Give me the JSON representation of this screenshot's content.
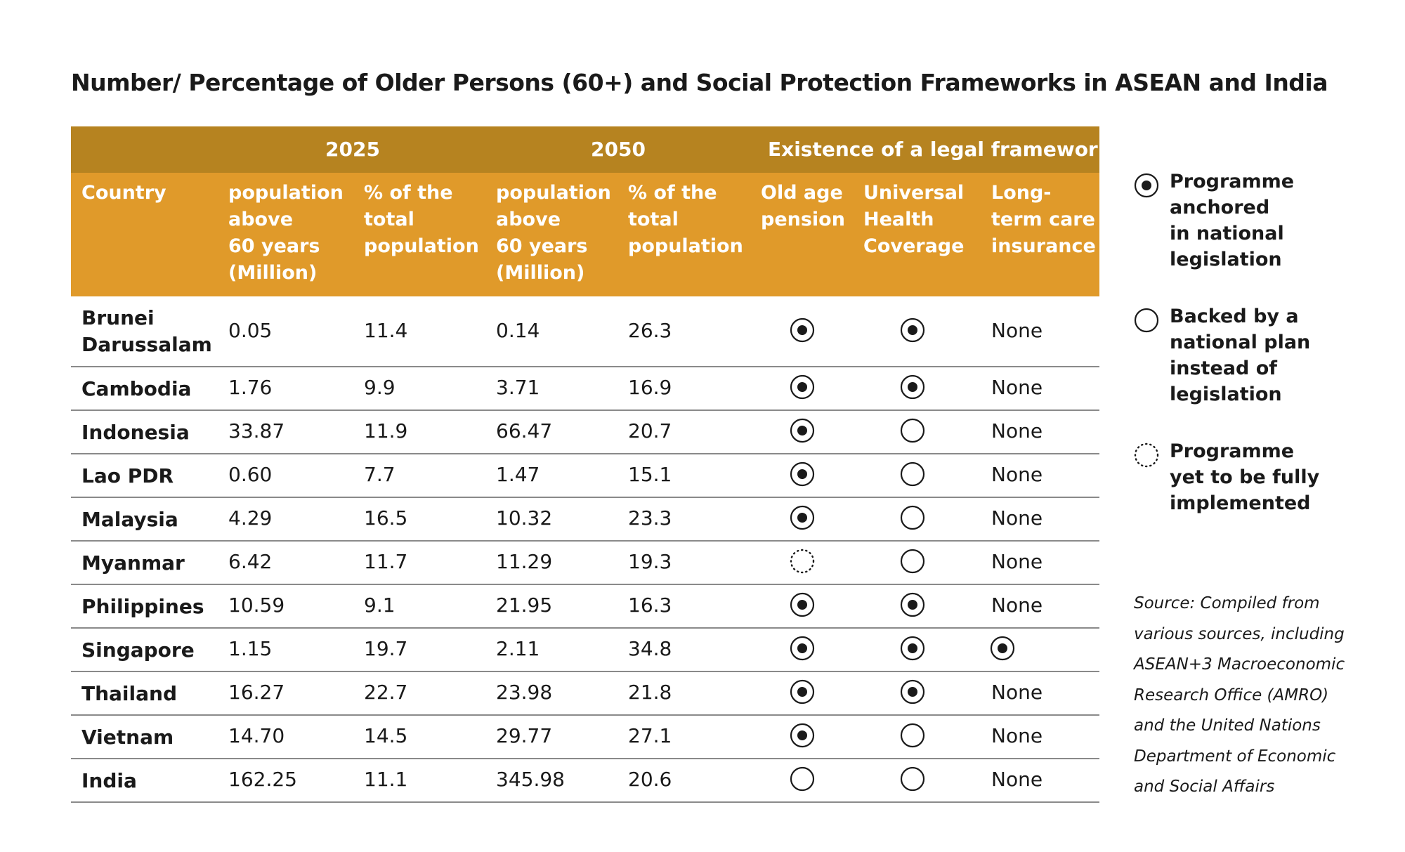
{
  "title": "Number/ Percentage of Older Persons (60+) and Social Protection Frameworks in ASEAN and India",
  "header_groups": {
    "y2025": "2025",
    "y2050": "2050",
    "framework": "Existence of a legal framework"
  },
  "columns": {
    "country": "Country",
    "pop2025": "population\nabove\n60 years\n(Million)",
    "pct2025": "% of the\ntotal\npopulation",
    "pop2050": "population\nabove\n60 years\n(Million)",
    "pct2050": "% of the\ntotal\npopulation",
    "pension": "Old age\npension",
    "uhc": "Universal\nHealth\nCoverage",
    "ltc": "Long-\nterm care\ninsurance"
  },
  "rows": [
    {
      "country": "Brunei\nDarussalam",
      "pop2025": "0.05",
      "pct2025": "11.4",
      "pop2050": "0.14",
      "pct2050": "26.3",
      "pension": "legislation",
      "uhc": "legislation",
      "ltc": "None"
    },
    {
      "country": "Cambodia",
      "pop2025": "1.76",
      "pct2025": "9.9",
      "pop2050": "3.71",
      "pct2050": "16.9",
      "pension": "legislation",
      "uhc": "legislation",
      "ltc": "None"
    },
    {
      "country": "Indonesia",
      "pop2025": "33.87",
      "pct2025": "11.9",
      "pop2050": "66.47",
      "pct2050": "20.7",
      "pension": "legislation",
      "uhc": "plan",
      "ltc": "None"
    },
    {
      "country": "Lao PDR",
      "pop2025": "0.60",
      "pct2025": "7.7",
      "pop2050": "1.47",
      "pct2050": "15.1",
      "pension": "legislation",
      "uhc": "plan",
      "ltc": "None"
    },
    {
      "country": "Malaysia",
      "pop2025": "4.29",
      "pct2025": "16.5",
      "pop2050": "10.32",
      "pct2050": "23.3",
      "pension": "legislation",
      "uhc": "plan",
      "ltc": "None"
    },
    {
      "country": "Myanmar",
      "pop2025": "6.42",
      "pct2025": "11.7",
      "pop2050": "11.29",
      "pct2050": "19.3",
      "pension": "pending",
      "uhc": "plan",
      "ltc": "None"
    },
    {
      "country": "Philippines",
      "pop2025": "10.59",
      "pct2025": "9.1",
      "pop2050": "21.95",
      "pct2050": "16.3",
      "pension": "legislation",
      "uhc": "legislation",
      "ltc": "None"
    },
    {
      "country": "Singapore",
      "pop2025": "1.15",
      "pct2025": "19.7",
      "pop2050": "2.11",
      "pct2050": "34.8",
      "pension": "legislation",
      "uhc": "legislation",
      "ltc": "legislation"
    },
    {
      "country": "Thailand",
      "pop2025": "16.27",
      "pct2025": "22.7",
      "pop2050": "23.98",
      "pct2050": "21.8",
      "pension": "legislation",
      "uhc": "legislation",
      "ltc": "None"
    },
    {
      "country": "Vietnam",
      "pop2025": "14.70",
      "pct2025": "14.5",
      "pop2050": "29.77",
      "pct2050": "27.1",
      "pension": "legislation",
      "uhc": "plan",
      "ltc": "None"
    },
    {
      "country": "India",
      "pop2025": "162.25",
      "pct2025": "11.1",
      "pop2050": "345.98",
      "pct2050": "20.6",
      "pension": "plan",
      "uhc": "plan",
      "ltc": "None"
    }
  ],
  "legend": [
    {
      "key": "legislation",
      "label": "Programme\nanchored\nin national\nlegislation",
      "icon": "filled-circle-icon"
    },
    {
      "key": "plan",
      "label": "Backed by a\nnational plan\ninstead of\nlegislation",
      "icon": "open-circle-icon"
    },
    {
      "key": "pending",
      "label": "Programme\nyet to be fully\nimplemented",
      "icon": "dotted-circle-icon"
    }
  ],
  "source": "Source: Compiled from\nvarious sources, including\nASEAN+3 Macroeconomic\nResearch Office (AMRO)\nand the United Nations\nDepartment of Economic\nand Social Affairs",
  "colors": {
    "header_dark": "#b68320",
    "header_light": "#e09a2a",
    "text": "#1a1a1a"
  }
}
